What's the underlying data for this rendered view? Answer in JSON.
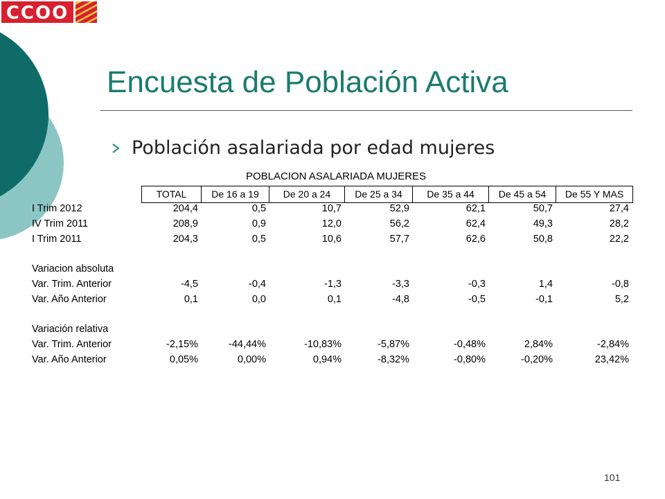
{
  "logo": {
    "text": "CCOO",
    "colors": {
      "red": "#d8202e",
      "gold": "#f3c33a"
    }
  },
  "slide": {
    "title": "Encuesta de Población Activa",
    "subtitle": "Población asalariada por edad mujeres",
    "page_number": "101"
  },
  "table": {
    "caption": "POBLACION ASALARIADA MUJERES",
    "headers": [
      "TOTAL",
      "De 16 a 19",
      "De 20 a 24",
      "De 25 a 34",
      "De 35 a 44",
      "De 45 a 54",
      "De 55 Y MAS"
    ],
    "rows": [
      {
        "label": "I Trim 2012",
        "values": [
          "204,4",
          "0,5",
          "10,7",
          "52,9",
          "62,1",
          "50,7",
          "27,4"
        ]
      },
      {
        "label": "IV Trim 2011",
        "values": [
          "208,9",
          "0,9",
          "12,0",
          "56,2",
          "62,4",
          "49,3",
          "28,2"
        ]
      },
      {
        "label": "I Trim 2011",
        "values": [
          "204,3",
          "0,5",
          "10,6",
          "57,7",
          "62,6",
          "50,8",
          "22,2"
        ]
      },
      {
        "label": "Variacion absoluta",
        "values": []
      },
      {
        "label": "Var. Trim. Anterior",
        "values": [
          "-4,5",
          "-0,4",
          "-1,3",
          "-3,3",
          "-0,3",
          "1,4",
          "-0,8"
        ]
      },
      {
        "label": "Var. Año Anterior",
        "values": [
          "0,1",
          "0,0",
          "0,1",
          "-4,8",
          "-0,5",
          "-0,1",
          "5,2"
        ]
      },
      {
        "label": "Variación relativa",
        "values": []
      },
      {
        "label": "Var. Trim. Anterior",
        "values": [
          "-2,15%",
          "-44,44%",
          "-10,83%",
          "-5,87%",
          "-0,48%",
          "2,84%",
          "-2,84%"
        ]
      },
      {
        "label": "Var. Año Anterior",
        "values": [
          "0,05%",
          "0,00%",
          "0,94%",
          "-8,32%",
          "-0,80%",
          "-0,20%",
          "23,42%"
        ]
      }
    ]
  }
}
